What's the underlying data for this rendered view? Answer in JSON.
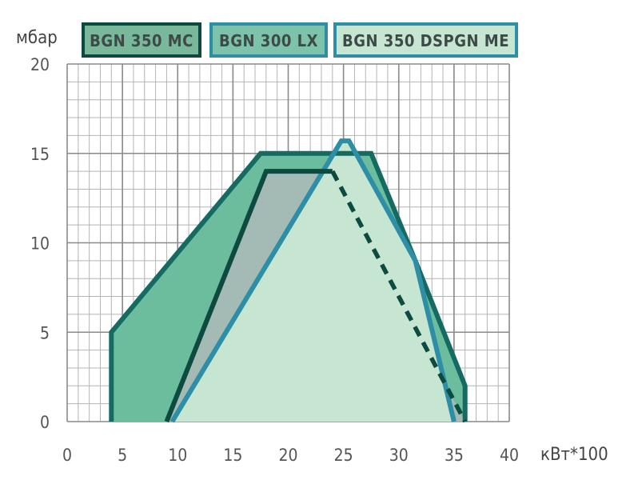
{
  "chart_data": {
    "type": "area",
    "xlabel": "кВт*100",
    "ylabel": "мбар",
    "xlim": [
      0,
      40
    ],
    "ylim": [
      0,
      20
    ],
    "x_ticks": [
      "0",
      "5",
      "10",
      "15",
      "20",
      "25",
      "30",
      "35",
      "40"
    ],
    "y_ticks": [
      "0",
      "5",
      "10",
      "15",
      "20"
    ],
    "grid": true,
    "legend_position": "top",
    "series": [
      {
        "name": "BGN 350 MC",
        "fill": "#6cbd9e",
        "stroke": "#156a62",
        "legend_fill": "#79b89a",
        "legend_stroke": "#0c4a40",
        "points": [
          [
            4,
            0
          ],
          [
            4,
            5
          ],
          [
            17.5,
            15
          ],
          [
            27.5,
            15
          ],
          [
            31.5,
            9
          ],
          [
            36,
            2
          ],
          [
            36,
            0
          ]
        ]
      },
      {
        "name": "BGN 300 LX",
        "fill": "#a3bab5",
        "stroke": "#0d4a40",
        "legend_fill": "#7dc2aa",
        "legend_stroke": "#2e8ea5",
        "points": [
          [
            9,
            0
          ],
          [
            18,
            14
          ],
          [
            24,
            14
          ]
        ],
        "dashed_points": [
          [
            24,
            14
          ],
          [
            36,
            0
          ]
        ]
      },
      {
        "name": "BGN 350 DSPGN ME",
        "fill": "#c6e6d2",
        "stroke": "#2e8ea5",
        "legend_fill": "#c6e6d2",
        "legend_stroke": "#2e8ea5",
        "points": [
          [
            9.5,
            0
          ],
          [
            24.8,
            15.7
          ],
          [
            25.5,
            15.7
          ],
          [
            31.5,
            9
          ],
          [
            35,
            0
          ]
        ]
      }
    ]
  }
}
